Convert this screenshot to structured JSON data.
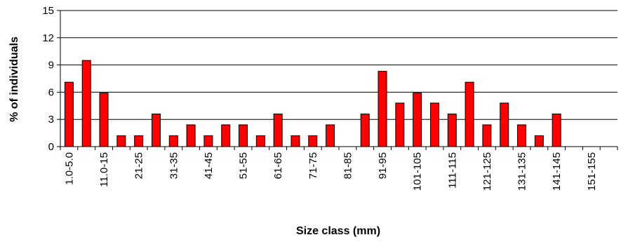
{
  "chart_data": {
    "type": "bar",
    "xlabel": "Size class (mm)",
    "ylabel": "% of individuals",
    "ylim": [
      0,
      15
    ],
    "yticks": [
      "0",
      "3",
      "6",
      "9",
      "12",
      "15"
    ],
    "grid": "horizontal",
    "legend": "none",
    "colors": {
      "bar": "#ff0000",
      "bar_edge": "#000000",
      "grid": "#000000",
      "top_gridline": "#808080"
    },
    "categories": [
      "1.0-5.0",
      "",
      "11.0-15",
      "",
      "21-25",
      "",
      "31-35",
      "",
      "41-45",
      "",
      "51-55",
      "",
      "61-65",
      "",
      "71-75",
      "",
      "81-85",
      "",
      "91-95",
      "",
      "101-105",
      "",
      "111-115",
      "",
      "121-125",
      "",
      "131-135",
      "",
      "141-145",
      "",
      "151-155",
      ""
    ],
    "values": [
      7.1,
      9.5,
      5.9,
      1.2,
      1.2,
      3.6,
      1.2,
      2.4,
      1.2,
      2.4,
      2.4,
      1.2,
      3.6,
      1.2,
      1.2,
      2.4,
      0,
      3.6,
      8.3,
      4.8,
      5.9,
      4.8,
      3.6,
      7.1,
      2.4,
      4.8,
      2.4,
      1.2,
      3.6,
      0,
      0,
      0
    ]
  }
}
